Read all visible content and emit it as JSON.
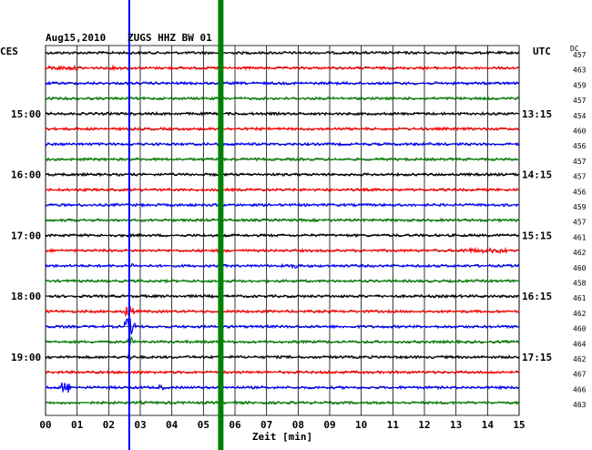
{
  "header": {
    "date": "Aug15,2010",
    "station": "ZUGS HHZ BW 01",
    "left_tz": "CES",
    "right_tz": "UTC",
    "dc_label": "DC"
  },
  "chart_data": {
    "type": "line",
    "title": "Aug15,2010 ZUGS HHZ BW 01",
    "xlabel": "Zeit [min]",
    "xlim": [
      0,
      15
    ],
    "x_ticks": [
      "00",
      "01",
      "02",
      "03",
      "04",
      "05",
      "06",
      "07",
      "08",
      "09",
      "10",
      "11",
      "12",
      "13",
      "14",
      "15"
    ],
    "grid": true,
    "row_minutes": 15,
    "trace_colors": [
      "#000000",
      "#ff0000",
      "#0000ff",
      "#008000"
    ],
    "left_hour_labels": [
      {
        "row": 4,
        "label": "15:00"
      },
      {
        "row": 8,
        "label": "16:00"
      },
      {
        "row": 12,
        "label": "17:00"
      },
      {
        "row": 16,
        "label": "18:00"
      },
      {
        "row": 20,
        "label": "19:00"
      }
    ],
    "right_hour_labels": [
      {
        "row": 4,
        "label": "13:15"
      },
      {
        "row": 8,
        "label": "14:15"
      },
      {
        "row": 12,
        "label": "15:15"
      },
      {
        "row": 16,
        "label": "16:15"
      },
      {
        "row": 20,
        "label": "17:15"
      }
    ],
    "dc_offsets": [
      "457",
      "463",
      "459",
      "457",
      "454",
      "460",
      "456",
      "457",
      "457",
      "456",
      "459",
      "457",
      "461",
      "462",
      "460",
      "458",
      "461",
      "462",
      "460",
      "464",
      "462",
      "467",
      "466",
      "463"
    ],
    "markers": [
      {
        "name": "blue marker",
        "minute": 2.65,
        "color": "#0000ff"
      },
      {
        "name": "green marker",
        "minute": 5.55,
        "color": "#008000"
      }
    ],
    "events": [
      {
        "row": 1,
        "start": 0.0,
        "end": 1.1,
        "amplitude": 2.2
      },
      {
        "row": 1,
        "start": 2.1,
        "end": 2.7,
        "amplitude": 1.8
      },
      {
        "row": 13,
        "start": 13.1,
        "end": 14.6,
        "amplitude": 2.5
      },
      {
        "row": 14,
        "start": 7.8,
        "end": 8.0,
        "amplitude": 4.0
      },
      {
        "row": 14,
        "start": 2.7,
        "end": 2.8,
        "amplitude": 3.0
      },
      {
        "row": 17,
        "start": 2.5,
        "end": 2.8,
        "amplitude": 6.0
      },
      {
        "row": 18,
        "start": 2.5,
        "end": 2.85,
        "amplitude": 9.0
      },
      {
        "row": 19,
        "start": 2.6,
        "end": 2.75,
        "amplitude": 5.0
      },
      {
        "row": 20,
        "start": 2.6,
        "end": 2.75,
        "amplitude": 4.0
      },
      {
        "row": 22,
        "start": 0.5,
        "end": 0.8,
        "amplitude": 6.0
      },
      {
        "row": 22,
        "start": 3.6,
        "end": 3.8,
        "amplitude": 3.0
      }
    ]
  }
}
